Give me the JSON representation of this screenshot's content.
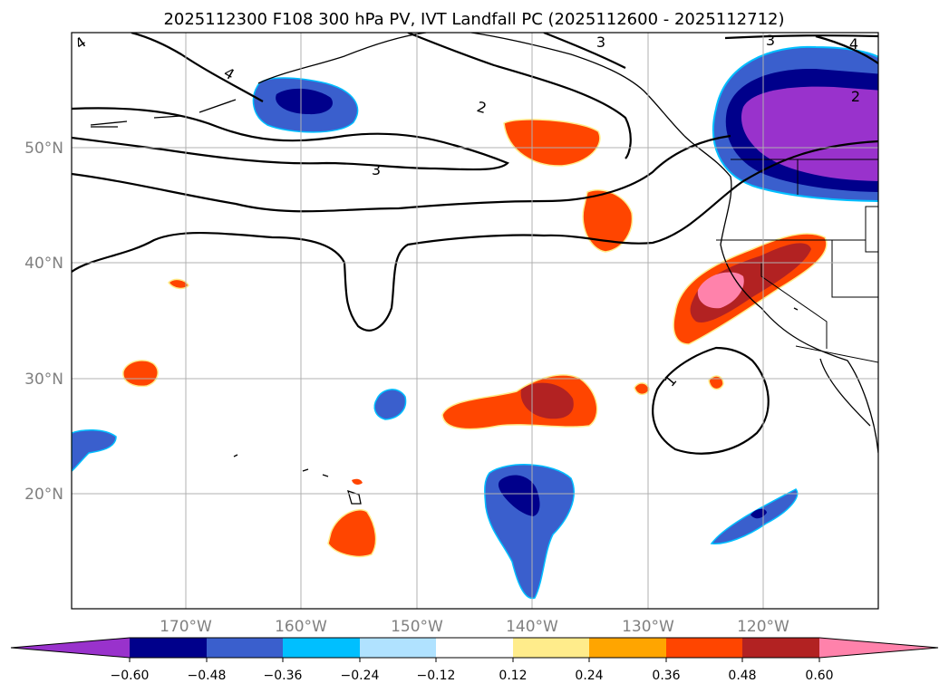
{
  "title": "2025112300 F108 300 hPa PV, IVT Landfall PC (2025112600 - 2025112712)",
  "lat_ticks": [
    "50°N",
    "40°N",
    "30°N",
    "20°N"
  ],
  "lon_ticks": [
    "170°W",
    "160°W",
    "150°W",
    "140°W",
    "130°W",
    "120°W"
  ],
  "contour_labels": [
    "4",
    "4",
    "3",
    "3",
    "4",
    "2",
    "2",
    "3",
    "1"
  ],
  "colorbar": {
    "ticks": [
      "−0.60",
      "−0.48",
      "−0.36",
      "−0.24",
      "−0.12",
      "0.12",
      "0.24",
      "0.36",
      "0.48",
      "0.60"
    ],
    "colors": [
      "#9932cc",
      "#00008b",
      "#3a5fcd",
      "#00bfff",
      "#b0e2ff",
      "#ffffff",
      "#ffec8b",
      "#ffa500",
      "#ff4500",
      "#b22222",
      "#ff82ab"
    ]
  }
}
